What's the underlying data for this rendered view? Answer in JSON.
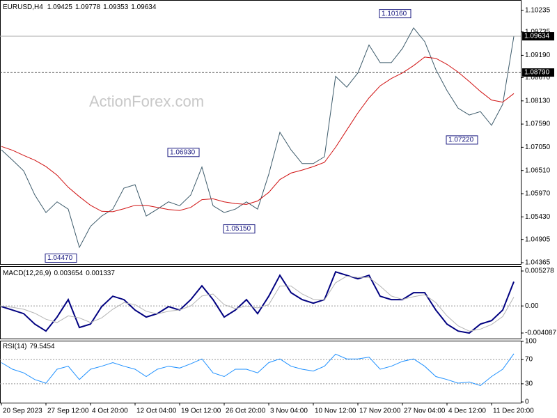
{
  "chart_data": [
    {
      "type": "line",
      "panel": "price",
      "header": {
        "symbol": "EURUSD,H4",
        "open": 1.09425,
        "high": 1.09778,
        "low": 1.09353,
        "close": 1.09634
      },
      "watermark": "ActionForex.com",
      "x": [
        0,
        1,
        2,
        3,
        4,
        5,
        6,
        7,
        8,
        9,
        10,
        11,
        12,
        13,
        14,
        15,
        16,
        17,
        18,
        19,
        20,
        21,
        22,
        23,
        24,
        25,
        26,
        27,
        28,
        29,
        30,
        31,
        32,
        33,
        34,
        35,
        36,
        37,
        38,
        39,
        40,
        41,
        42,
        43,
        44,
        45,
        46
      ],
      "xlim": [
        -0.125,
        46.625
      ],
      "ylim": [
        1.04316,
        1.10478
      ],
      "yticks": [
        1.10235,
        1.09735,
        {
          "value": 1.0919,
          "label": "1.09190"
        },
        {
          "value": 1.0867,
          "label": "1.08670"
        },
        {
          "value": 1.0813,
          "label": "1.08130"
        },
        {
          "value": 1.0759,
          "label": "1.07590"
        },
        {
          "value": 1.0705,
          "label": "1.07050"
        },
        {
          "value": 1.0651,
          "label": "1.06510"
        },
        {
          "value": 1.0597,
          "label": "1.05970"
        },
        {
          "value": 1.0543,
          "label": "1.05430"
        },
        1.04905,
        1.04365
      ],
      "series": [
        {
          "name": "EURUSD",
          "color": "#3c5a6a",
          "values": [
            1.0699,
            1.0675,
            1.065,
            1.0594,
            1.0553,
            1.0578,
            1.0561,
            1.0472,
            1.0521,
            1.0545,
            1.0561,
            1.061,
            1.0618,
            1.0545,
            1.0561,
            1.0578,
            1.0569,
            1.0594,
            1.0659,
            1.0569,
            1.0553,
            1.0561,
            1.0578,
            1.0561,
            1.0642,
            1.074,
            1.0699,
            1.0667,
            1.0667,
            1.0683,
            1.087,
            1.0845,
            1.0878,
            1.0943,
            1.0902,
            1.0902,
            1.0935,
            1.0983,
            1.0951,
            1.0886,
            1.0837,
            1.0796,
            1.078,
            1.0788,
            1.0756,
            1.0805,
            1.0963
          ]
        },
        {
          "name": "MA",
          "color": "#d01010",
          "values": [
            1.0707,
            1.0698,
            1.0686,
            1.0675,
            1.066,
            1.064,
            1.0612,
            1.059,
            1.057,
            1.0556,
            1.0555,
            1.0562,
            1.057,
            1.057,
            1.0565,
            1.056,
            1.0558,
            1.0565,
            1.0583,
            1.0585,
            1.0578,
            1.0574,
            1.0572,
            1.058,
            1.06,
            1.063,
            1.0645,
            1.0652,
            1.066,
            1.067,
            1.0705,
            1.0745,
            1.0785,
            1.082,
            1.0848,
            1.0865,
            1.0878,
            1.0895,
            1.0915,
            1.0912,
            1.0898,
            1.088,
            1.0858,
            1.0835,
            1.0815,
            1.081,
            1.083
          ]
        }
      ],
      "annotations": [
        {
          "text": "1.04470",
          "value": 1.0447,
          "x": 7
        },
        {
          "text": "1.05150",
          "value": 1.0515,
          "x": 23
        },
        {
          "text": "1.06930",
          "value": 1.0693,
          "x": 18
        },
        {
          "text": "1.10160",
          "value": 1.1016,
          "x": 37
        },
        {
          "text": "1.07220",
          "value": 1.0722,
          "x": 43
        }
      ],
      "levels": [
        {
          "value": 1.09634,
          "label": "1.09634",
          "style": "solid"
        },
        {
          "value": 1.0879,
          "label": "1.08790",
          "style": "dashed"
        }
      ]
    },
    {
      "type": "line",
      "panel": "macd",
      "title": "MACD(12,26,9)",
      "readouts": [
        0.003654,
        0.001337
      ],
      "x": [
        0,
        1,
        2,
        3,
        4,
        5,
        6,
        7,
        8,
        9,
        10,
        11,
        12,
        13,
        14,
        15,
        16,
        17,
        18,
        19,
        20,
        21,
        22,
        23,
        24,
        25,
        26,
        27,
        28,
        29,
        30,
        31,
        32,
        33,
        34,
        35,
        36,
        37,
        38,
        39,
        40,
        41,
        42,
        43,
        44,
        45,
        46
      ],
      "xlim": [
        -0.125,
        46.625
      ],
      "ylim": [
        -0.005034,
        0.006014
      ],
      "yticks": [
        0.005278,
        {
          "value": 0,
          "label": "0.00"
        },
        -0.004087
      ],
      "levels": [
        0
      ],
      "series": [
        {
          "name": "MACD",
          "color": "#000080",
          "values": [
            -0.0001,
            -0.00063,
            -0.00116,
            -0.00274,
            -0.00379,
            -0.00168,
            0.00095,
            -0.00326,
            -0.00274,
            -0.0001,
            0.00147,
            0.00095,
            -0.00063,
            -0.00168,
            -0.00116,
            -0.0001,
            -0.00063,
            0.00095,
            0.00305,
            0.00095,
            -0.00168,
            -0.00063,
            0.00095,
            -0.00116,
            0.00147,
            0.00463,
            0.002,
            0.00095,
            0.00042,
            0.00095,
            0.00515,
            0.00463,
            0.0041,
            0.00463,
            0.00147,
            0.00095,
            0.00095,
            0.002,
            0.002,
            -0.00063,
            -0.00274,
            -0.00379,
            -0.0041,
            -0.00274,
            -0.00221,
            -0.00063,
            0.003654
          ]
        },
        {
          "name": "Signal",
          "color": "#b4b4b4",
          "values": [
            0,
            -0.0002,
            -0.0005,
            -0.0011,
            -0.002,
            -0.0025,
            -0.0015,
            -0.0018,
            -0.0025,
            -0.0018,
            -0.0005,
            0.0005,
            0.0002,
            -0.0008,
            -0.0012,
            -0.0008,
            -0.0006,
            0,
            0.0015,
            0.0018,
            0.0002,
            -0.0004,
            0,
            -0.0003,
            0.0002,
            0.003,
            0.003,
            0.0018,
            0.001,
            0.0009,
            0.0035,
            0.0045,
            0.0043,
            0.0043,
            0.003,
            0.0015,
            0.001,
            0.0014,
            0.0017,
            0.0005,
            -0.0015,
            -0.003,
            -0.0038,
            -0.0035,
            -0.0028,
            -0.0016,
            0.001337
          ]
        }
      ]
    },
    {
      "type": "line",
      "panel": "rsi",
      "title": "RSI(14)",
      "readouts": [
        79.5454
      ],
      "x": [
        0,
        1,
        2,
        3,
        4,
        5,
        6,
        7,
        8,
        9,
        10,
        11,
        12,
        13,
        14,
        15,
        16,
        17,
        18,
        19,
        20,
        21,
        22,
        23,
        24,
        25,
        26,
        27,
        28,
        29,
        30,
        31,
        32,
        33,
        34,
        35,
        36,
        37,
        38,
        39,
        40,
        41,
        42,
        43,
        44,
        45,
        46
      ],
      "xlim": [
        -0.125,
        46.625
      ],
      "ylim": [
        0,
        100
      ],
      "yticks": [
        100,
        70,
        30,
        0
      ],
      "levels": [
        70,
        30
      ],
      "xticks": [
        {
          "value": 0,
          "label": "20 Sep 2023"
        },
        {
          "value": 4,
          "label": "27 Sep 12:00"
        },
        {
          "value": 8,
          "label": "4 Oct 20:00"
        },
        {
          "value": 12,
          "label": "12 Oct 04:00"
        },
        {
          "value": 16,
          "label": "19 Oct 12:00"
        },
        {
          "value": 20,
          "label": "26 Oct 20:00"
        },
        {
          "value": 24,
          "label": "3 Nov 04:00"
        },
        {
          "value": 28,
          "label": "10 Nov 12:00"
        },
        {
          "value": 32,
          "label": "17 Nov 20:00"
        },
        {
          "value": 36,
          "label": "27 Nov 04:00"
        },
        {
          "value": 40,
          "label": "4 Dec 12:00"
        },
        {
          "value": 44,
          "label": "11 Dec 20:00"
        }
      ],
      "series": [
        {
          "name": "RSI",
          "color": "#1e90ff",
          "values": [
            65,
            54,
            48,
            37,
            31,
            54,
            59,
            37,
            54,
            59,
            65,
            59,
            54,
            42,
            54,
            59,
            56,
            63,
            71,
            48,
            42,
            54,
            54,
            48,
            65,
            71,
            59,
            54,
            51,
            59,
            79,
            71,
            71,
            74,
            54,
            59,
            67,
            71,
            59,
            42,
            37,
            31,
            33,
            27,
            42,
            54,
            79.5454
          ]
        }
      ]
    }
  ]
}
